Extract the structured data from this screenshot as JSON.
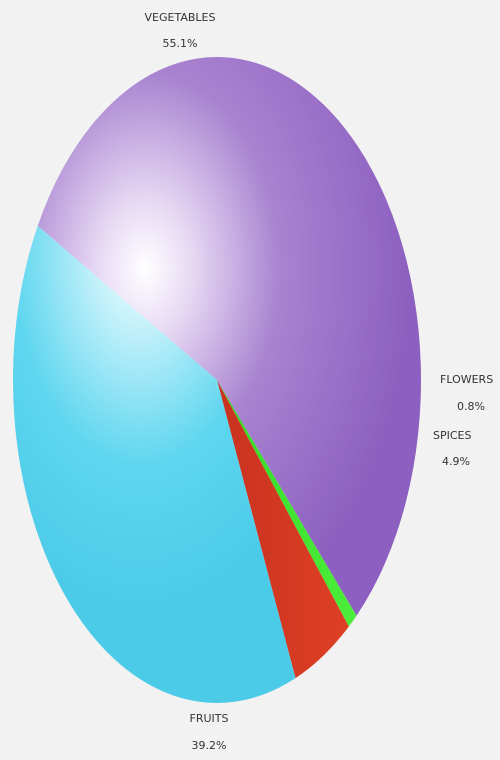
{
  "chart_data": {
    "type": "pie",
    "slices": [
      {
        "label": "VEGETABLES",
        "value": 55.1,
        "value_label": "55.1%",
        "color": "#9569c4"
      },
      {
        "label": "FLOWERS",
        "value": 0.8,
        "value_label": "0.8%",
        "color": "#3ae22c"
      },
      {
        "label": "SPICES",
        "value": 4.9,
        "value_label": "4.9%",
        "color": "#d83a22"
      },
      {
        "label": "FRUITS",
        "value": 39.2,
        "value_label": "39.2%",
        "color": "#56d4ee"
      }
    ],
    "legend": "none",
    "labels": "outside"
  }
}
